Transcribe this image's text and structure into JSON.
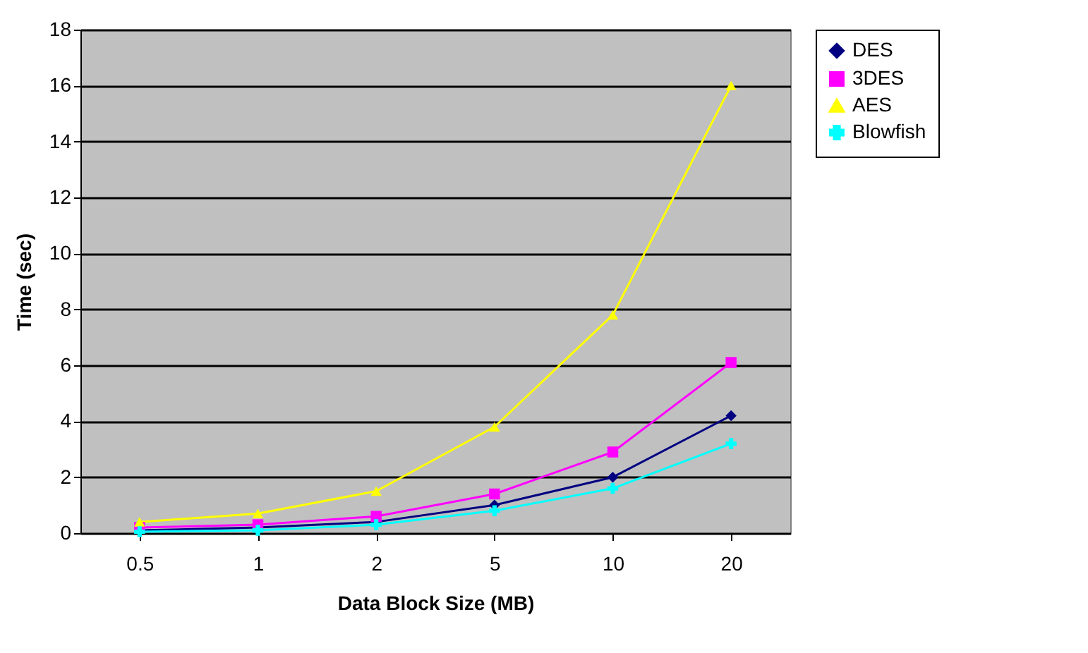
{
  "chart_data": {
    "type": "line",
    "xlabel": "Data Block Size (MB)",
    "ylabel": "Time (sec)",
    "categories": [
      "0.5",
      "1",
      "2",
      "5",
      "10",
      "20"
    ],
    "series": [
      {
        "name": "DES",
        "color": "#000080",
        "marker": "diamond",
        "values": [
          0.1,
          0.2,
          0.4,
          1.0,
          2.0,
          4.2
        ]
      },
      {
        "name": "3DES",
        "color": "#ff00ff",
        "marker": "square",
        "values": [
          0.2,
          0.3,
          0.6,
          1.4,
          2.9,
          6.1
        ]
      },
      {
        "name": "AES",
        "color": "#ffff00",
        "marker": "triangle",
        "values": [
          0.4,
          0.7,
          1.5,
          3.8,
          7.8,
          16.0
        ]
      },
      {
        "name": "Blowfish",
        "color": "#00ffff",
        "marker": "cross",
        "values": [
          0.05,
          0.1,
          0.3,
          0.8,
          1.6,
          3.2
        ]
      }
    ],
    "ylim": [
      0,
      18
    ],
    "yticks": [
      0,
      2,
      4,
      6,
      8,
      10,
      12,
      14,
      16,
      18
    ],
    "grid": "y",
    "legend": "right"
  }
}
